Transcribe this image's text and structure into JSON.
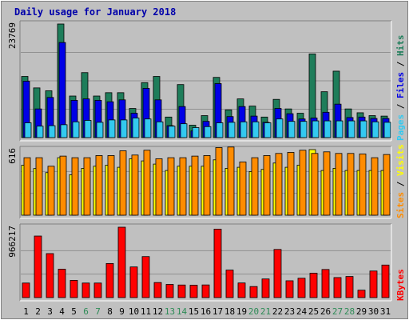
{
  "chart_data": {
    "type": "bar",
    "title": "Daily usage for January 2018",
    "categories": [
      "1",
      "2",
      "3",
      "4",
      "5",
      "6",
      "7",
      "8",
      "9",
      "10",
      "11",
      "12",
      "13",
      "14",
      "15",
      "16",
      "17",
      "18",
      "19",
      "20",
      "21",
      "22",
      "23",
      "24",
      "25",
      "26",
      "27",
      "28",
      "29",
      "30",
      "31"
    ],
    "weekend_days": [
      "6",
      "7",
      "13",
      "14",
      "20",
      "21",
      "27",
      "28"
    ],
    "colors": {
      "background": "#C0C0C0",
      "frame": "#D0D0D0",
      "title": "#0000AA",
      "hits": "#1E7D5A",
      "files": "#0000E6",
      "pages": "#33C9F0",
      "visits": "#FFFF00",
      "sites": "#FF8C00",
      "kbytes": "#FF0000",
      "weekend_label": "#2E8B57",
      "weekday_label": "#000000"
    },
    "panels": [
      {
        "id": "hits-files-pages",
        "ymax_label": "23769",
        "legend": [
          {
            "text": "Pages",
            "color": "#33C9F0"
          },
          {
            "text": " / ",
            "color": "#000000"
          },
          {
            "text": "Files",
            "color": "#0000E6"
          },
          {
            "text": " / ",
            "color": "#000000"
          },
          {
            "text": "Hits",
            "color": "#1E7D5A"
          }
        ],
        "ylim": [
          0,
          23769
        ],
        "series": [
          {
            "name": "Hits",
            "values": [
              12800,
              10400,
              9800,
              23769,
              8700,
              13600,
              8700,
              9400,
              9400,
              6100,
              11500,
              12800,
              4300,
              11100,
              2600,
              4600,
              12600,
              5800,
              8100,
              6600,
              4300,
              8000,
              6000,
              5100,
              17500,
              9600,
              13900,
              6000,
              5200,
              4600,
              4500
            ]
          },
          {
            "name": "Files",
            "values": [
              11800,
              6000,
              8400,
              19900,
              7800,
              8100,
              7800,
              7500,
              7900,
              5100,
              10300,
              7900,
              2500,
              6500,
              1400,
              3400,
              11300,
              4400,
              6500,
              4500,
              3200,
              6100,
              5000,
              3900,
              4100,
              5300,
              7000,
              4200,
              4300,
              4000,
              4000
            ]
          },
          {
            "name": "Pages",
            "values": [
              3100,
              2400,
              2500,
              2700,
              3300,
              3600,
              3200,
              3700,
              3700,
              4100,
              3900,
              3300,
              2400,
              2900,
              2100,
              2300,
              3100,
              3200,
              3300,
              3300,
              3100,
              3900,
              3400,
              3400,
              3500,
              3500,
              3500,
              3500,
              3500,
              3300,
              3200
            ]
          }
        ]
      },
      {
        "id": "visits-sites",
        "ymax_label": "616",
        "legend": [
          {
            "text": "Sites",
            "color": "#FF8C00"
          },
          {
            "text": " / ",
            "color": "#000000"
          },
          {
            "text": "Visits",
            "color": "#FFFF00"
          }
        ],
        "ylim": [
          0,
          616
        ],
        "series": [
          {
            "name": "Visits",
            "values": [
              470,
              438,
              400,
              540,
              380,
              440,
              460,
              470,
              450,
              530,
              510,
              480,
              420,
              460,
              460,
              460,
              520,
              440,
              450,
              410,
              430,
              490,
              450,
              470,
              616,
              420,
              440,
              420,
              420,
              420,
              420
            ]
          },
          {
            "name": "Sites",
            "values": [
              540,
              540,
              460,
              555,
              540,
              540,
              560,
              560,
              605,
              565,
              610,
              530,
              540,
              540,
              555,
              560,
              635,
              640,
              500,
              540,
              560,
              580,
              590,
              610,
              580,
              595,
              580,
              580,
              575,
              540,
              570
            ]
          }
        ]
      },
      {
        "id": "kbytes",
        "ymax_label": "966217",
        "legend": [
          {
            "text": "KBytes",
            "color": "#FF0000"
          }
        ],
        "ylim": [
          0,
          966217
        ],
        "series": [
          {
            "name": "KBytes",
            "values": [
              200000,
              845000,
              604000,
              390000,
              237000,
              200000,
              200000,
              468000,
              966217,
              421000,
              563000,
              207000,
              181000,
              173000,
              170000,
              174000,
              940000,
              378000,
              201000,
              152000,
              256000,
              661000,
              231000,
              266000,
              335000,
              386000,
              275000,
              290000,
              102000,
              365000,
              447000
            ]
          }
        ]
      }
    ]
  }
}
